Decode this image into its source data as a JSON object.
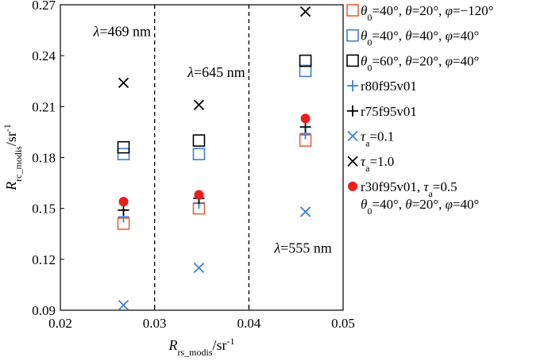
{
  "chart_data": {
    "type": "scatter",
    "title": "",
    "xlabel": {
      "main": "R",
      "sub": "rs_modis",
      "rest": "/sr",
      "sup": "-1"
    },
    "ylabel": {
      "main": "R",
      "sub": "rc_modis",
      "rest": "/sr",
      "sup": "-1"
    },
    "xlim": [
      0.02,
      0.05
    ],
    "ylim": [
      0.09,
      0.27
    ],
    "xticks": [
      "0.02",
      "0.03",
      "0.04",
      "0.05"
    ],
    "yticks": [
      "0.09",
      "0.12",
      "0.15",
      "0.18",
      "0.21",
      "0.24",
      "0.27"
    ],
    "vlines": [
      0.03,
      0.04
    ],
    "annotations": [
      {
        "text": "λ=469 nm",
        "x": 0.0235,
        "y": 0.2515
      },
      {
        "text": "λ=645 nm",
        "x": 0.0335,
        "y": 0.2275
      },
      {
        "text": "λ=555 nm",
        "x": 0.0427,
        "y": 0.124
      }
    ],
    "series": [
      {
        "label_html": "<tspan font-style='italic'>θ</tspan><tspan baseline-shift='sub' font-size='12'>0</tspan>=40°, <tspan font-style='italic'>θ</tspan>=20°, <tspan font-style='italic'>φ</tspan>=−120°",
        "marker": "square",
        "color": "#e8643c",
        "x": [
          0.0267,
          0.0347,
          0.046
        ],
        "y": [
          0.141,
          0.15,
          0.19
        ]
      },
      {
        "label_html": "<tspan font-style='italic'>θ</tspan><tspan baseline-shift='sub' font-size='12'>0</tspan>=40°, <tspan font-style='italic'>θ</tspan>=40°, <tspan font-style='italic'>φ</tspan>=40°",
        "marker": "square",
        "color": "#3d7fd6",
        "x": [
          0.0267,
          0.0347,
          0.046
        ],
        "y": [
          0.182,
          0.182,
          0.231
        ]
      },
      {
        "label_html": "<tspan font-style='italic'>θ</tspan><tspan baseline-shift='sub' font-size='12'>0</tspan>=60°, <tspan font-style='italic'>θ</tspan>=20°, <tspan font-style='italic'>φ</tspan>=40°",
        "marker": "square",
        "color": "#000000",
        "x": [
          0.0267,
          0.0347,
          0.046
        ],
        "y": [
          0.186,
          0.19,
          0.237
        ]
      },
      {
        "label_html": "r80f95v01",
        "marker": "plus",
        "color": "#3d7fd6",
        "x": [
          0.0267,
          0.0347,
          0.046
        ],
        "y": [
          0.145,
          0.153,
          0.194
        ]
      },
      {
        "label_html": "r75f95v01",
        "marker": "plus",
        "color": "#000000",
        "x": [
          0.0267,
          0.0347,
          0.046
        ],
        "y": [
          0.149,
          0.156,
          0.198
        ]
      },
      {
        "label_html": "<tspan font-style='italic'>τ</tspan><tspan baseline-shift='sub' font-size='12'>a</tspan>=0.1",
        "marker": "x",
        "color": "#3d7fd6",
        "x": [
          0.0267,
          0.0347,
          0.046
        ],
        "y": [
          0.093,
          0.115,
          0.148
        ]
      },
      {
        "label_html": "<tspan font-style='italic'>τ</tspan><tspan baseline-shift='sub' font-size='12'>a</tspan>=1.0",
        "marker": "x",
        "color": "#000000",
        "x": [
          0.0267,
          0.0347,
          0.046
        ],
        "y": [
          0.224,
          0.211,
          0.266
        ]
      },
      {
        "label_html": "r30f95v01, <tspan font-style='italic'>τ</tspan><tspan baseline-shift='sub' font-size='12'>a</tspan>=0.5",
        "label_html2": "<tspan font-style='italic'>θ</tspan><tspan baseline-shift='sub' font-size='12'>0</tspan>=40°, <tspan font-style='italic'>θ</tspan>=20°, <tspan font-style='italic'>φ</tspan>=40°",
        "marker": "dot",
        "color": "#ee1c1c",
        "x": [
          0.0267,
          0.0347,
          0.046
        ],
        "y": [
          0.154,
          0.158,
          0.203
        ]
      }
    ]
  }
}
